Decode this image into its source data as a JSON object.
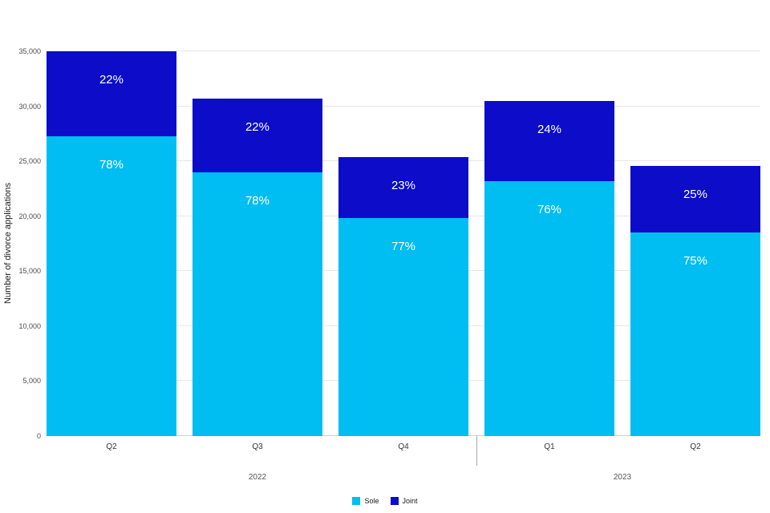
{
  "chart_data": {
    "type": "bar",
    "stacked": true,
    "title": "",
    "xlabel": "",
    "ylabel": "Number of divorce applications",
    "ylim": [
      0,
      35000
    ],
    "yticks": [
      0,
      5000,
      10000,
      15000,
      20000,
      25000,
      30000,
      35000
    ],
    "grid": true,
    "legend_position": "bottom",
    "categories": [
      "Q2",
      "Q3",
      "Q4",
      "Q1",
      "Q2"
    ],
    "year_groups": [
      {
        "label": "2022",
        "span": 3
      },
      {
        "label": "2023",
        "span": 2
      }
    ],
    "series": [
      {
        "name": "Sole",
        "color": "#00bdf2",
        "values": [
          27300,
          24000,
          19800,
          23200,
          18500
        ],
        "labels": [
          "78%",
          "78%",
          "77%",
          "76%",
          "75%"
        ]
      },
      {
        "name": "Joint",
        "color": "#0c0cc9",
        "values": [
          7700,
          6700,
          5600,
          7300,
          6100
        ],
        "labels": [
          "22%",
          "22%",
          "23%",
          "24%",
          "25%"
        ]
      }
    ],
    "grid_color": "#e6e6e6",
    "zero_line_color": "#cfcfcf"
  }
}
